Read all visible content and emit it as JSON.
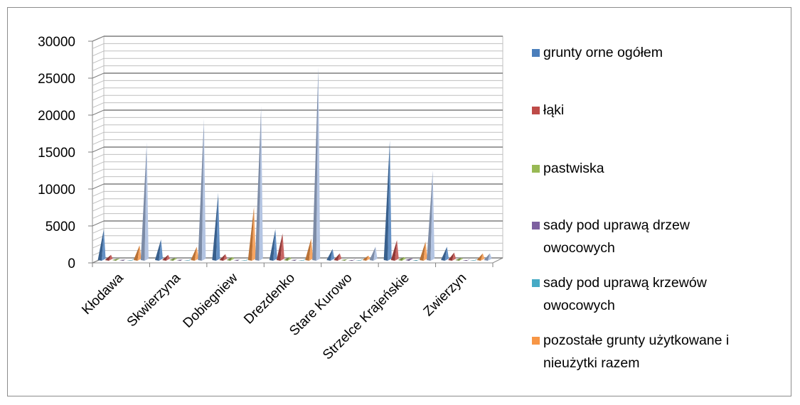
{
  "chart_data": {
    "type": "bar",
    "style": "3d-pyramid",
    "categories": [
      "Kłodawa",
      "Skwierzyna",
      "Dobiegniew",
      "Drezdenko",
      "Stare Kurowo",
      "Strzelce Krajeńskie",
      "Zwierzyn"
    ],
    "y_ticks": [
      "0",
      "5000",
      "10000",
      "15000",
      "20000",
      "25000",
      "30000"
    ],
    "ylim": [
      0,
      30000
    ],
    "grid": true,
    "legend_position": "right",
    "series": [
      {
        "name": "grunty orne ogółem",
        "color": "#4a7ebb",
        "values": [
          4300,
          2900,
          9200,
          4300,
          1600,
          16300,
          1900
        ]
      },
      {
        "name": "łąki",
        "color": "#be4b48",
        "values": [
          800,
          800,
          900,
          3700,
          1000,
          2800,
          1100
        ]
      },
      {
        "name": "pastwiska",
        "color": "#98b954",
        "values": [
          300,
          400,
          500,
          500,
          200,
          500,
          400
        ]
      },
      {
        "name": "sady pod uprawą drzew owocowych",
        "color": "#7d60a0",
        "values": [
          150,
          150,
          150,
          150,
          100,
          300,
          100
        ]
      },
      {
        "name": "sady pod uprawą krzewów owocowych",
        "color": "#46aac5",
        "values": [
          50,
          50,
          50,
          50,
          50,
          100,
          50
        ]
      },
      {
        "name": "pozostałe grunty użytkowane i nieużytki razem",
        "color": "#f79646",
        "values": [
          2100,
          1900,
          7300,
          3000,
          700,
          2600,
          1000
        ]
      },
      {
        "name": "",
        "color": "#a5b9dd",
        "values": [
          16000,
          19200,
          20900,
          26200,
          1900,
          12200,
          1000
        ]
      }
    ],
    "legend_labels": [
      [
        "grunty orne ogółem"
      ],
      [
        "łąki"
      ],
      [
        "pastwiska"
      ],
      [
        "sady pod uprawą drzew",
        "owocowych"
      ],
      [
        "sady pod uprawą krzewów",
        "owocowych"
      ],
      [
        "pozostałe grunty użytkowane i",
        "nieużytki razem"
      ]
    ]
  }
}
